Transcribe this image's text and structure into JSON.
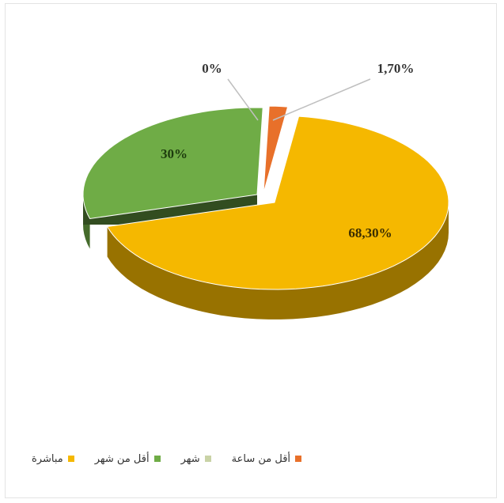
{
  "chart_data": {
    "type": "pie",
    "title": "",
    "series": [
      {
        "name": "مباشرة",
        "value": 68.3,
        "label": "68,30%",
        "color": "#f5b800"
      },
      {
        "name": "أقل من شهر",
        "value": 30,
        "label": "30%",
        "color": "#6fac46"
      },
      {
        "name": "شهر",
        "value": 0,
        "label": "0%",
        "color": "#c9d3a6"
      },
      {
        "name": "أقل من ساعة",
        "value": 1.7,
        "label": "1,70%",
        "color": "#e8702a"
      }
    ],
    "legend_position": "bottom",
    "style": "3d-exploded"
  }
}
